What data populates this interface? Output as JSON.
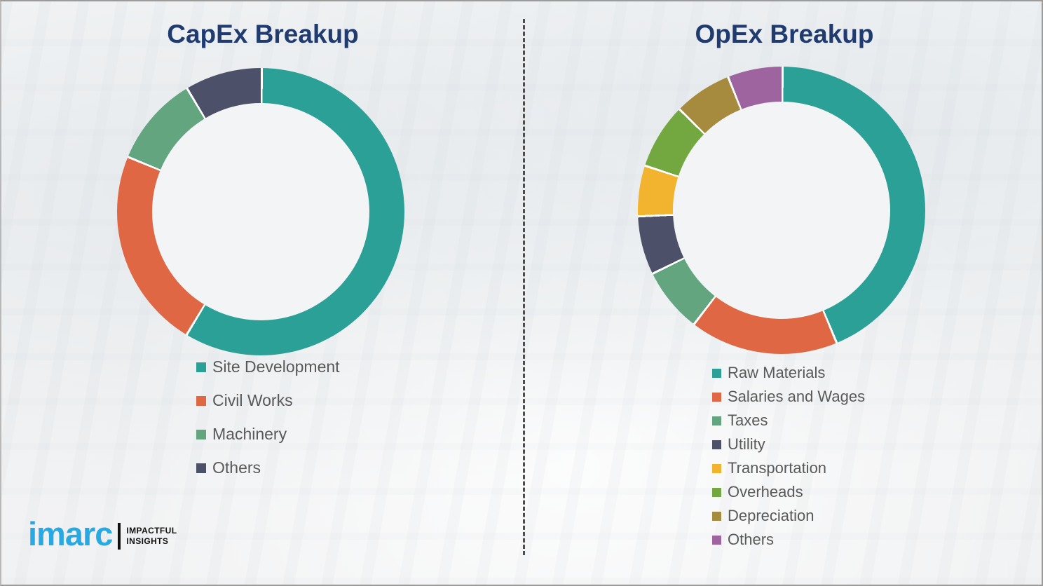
{
  "colors": {
    "title_text": "#1f3b70",
    "legend_text": "#595959",
    "divider": "#4d4d4d",
    "segment_gap": "#ffffff",
    "donut_hole": "#f3f4f5"
  },
  "chart_data": [
    {
      "type": "pie",
      "subtype": "donut",
      "title": "CapEx Breakup",
      "legend_position": "below-left",
      "start_angle_deg": 0,
      "direction": "clockwise",
      "segments": [
        {
          "label": "Site Development",
          "value": 58.5,
          "color": "#2aa096"
        },
        {
          "label": "Civil Works",
          "value": 22.6,
          "color": "#df6743"
        },
        {
          "label": "Machinery",
          "value": 10.2,
          "color": "#63a57f"
        },
        {
          "label": "Others",
          "value": 8.7,
          "color": "#4c5169"
        }
      ]
    },
    {
      "type": "pie",
      "subtype": "donut",
      "title": "OpEx Breakup",
      "legend_position": "below-left",
      "start_angle_deg": 0,
      "direction": "clockwise",
      "segments": [
        {
          "label": "Raw Materials",
          "value": 43.6,
          "color": "#2aa096"
        },
        {
          "label": "Salaries and Wages",
          "value": 16.7,
          "color": "#df6743"
        },
        {
          "label": "Taxes",
          "value": 7.3,
          "color": "#63a57f"
        },
        {
          "label": "Utility",
          "value": 6.6,
          "color": "#4c5169"
        },
        {
          "label": "Transportation",
          "value": 5.7,
          "color": "#f2b32e"
        },
        {
          "label": "Overheads",
          "value": 7.4,
          "color": "#72a83f"
        },
        {
          "label": "Depreciation",
          "value": 6.5,
          "color": "#a68a3e"
        },
        {
          "label": "Others",
          "value": 6.2,
          "color": "#9d64a0"
        }
      ]
    }
  ],
  "logo": {
    "brand": "imarc",
    "brand_color": "#29a9e1",
    "tagline_line1": "IMPACTFUL",
    "tagline_line2": "INSIGHTS"
  }
}
